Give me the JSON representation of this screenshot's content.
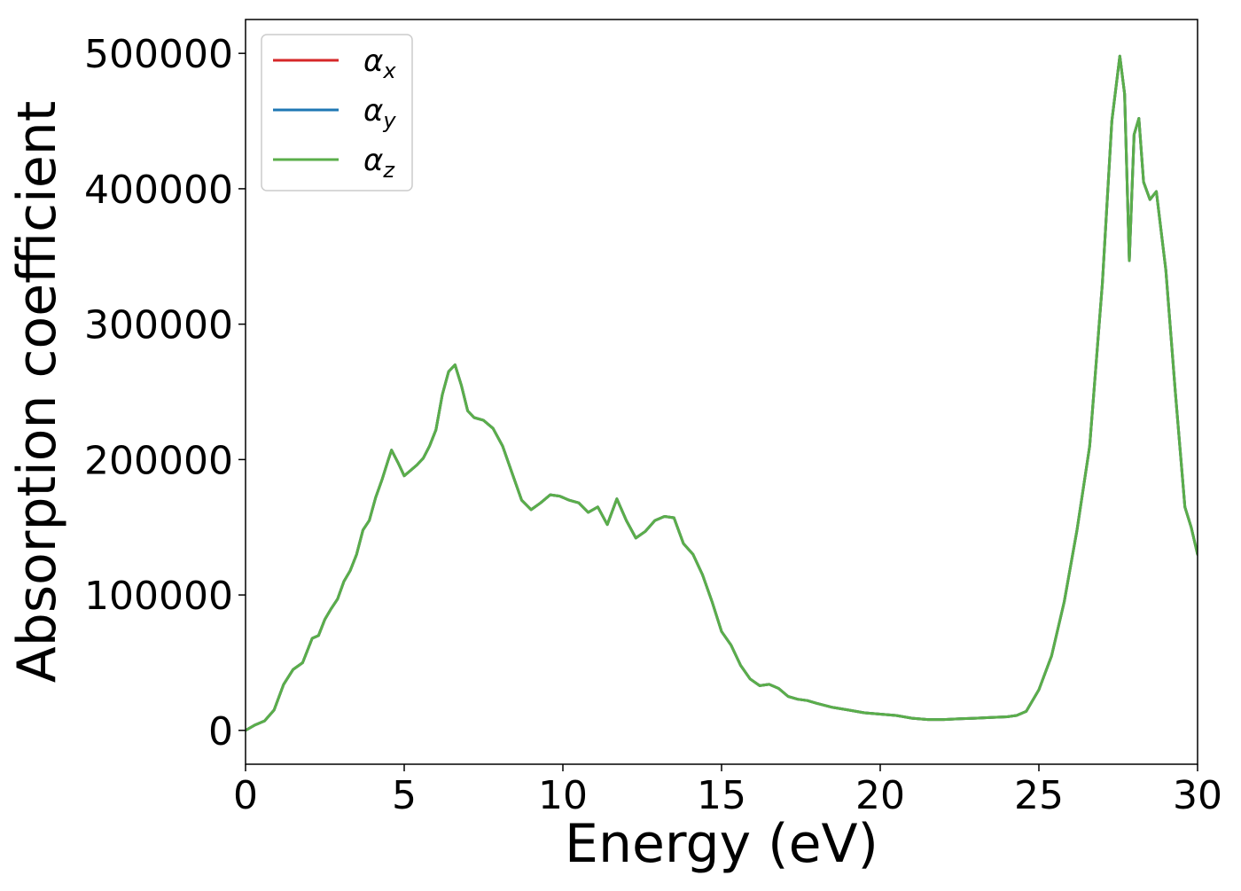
{
  "chart_data": {
    "type": "line",
    "title": "",
    "xlabel": "Energy (eV)",
    "ylabel": "Absorption coefficient",
    "xlim": [
      0,
      30
    ],
    "ylim": [
      -25000,
      525000
    ],
    "xticks": [
      0,
      5,
      10,
      15,
      20,
      25,
      30
    ],
    "yticks": [
      0,
      100000,
      200000,
      300000,
      400000,
      500000
    ],
    "grid": false,
    "legend_position": "top-left",
    "series": [
      {
        "name": "αx",
        "symbol": "α",
        "subscript": "x",
        "color": "#d62728",
        "x": [
          0,
          0.3,
          0.6,
          0.9,
          1.2,
          1.5,
          1.8,
          2.1,
          2.3,
          2.5,
          2.7,
          2.9,
          3.1,
          3.3,
          3.5,
          3.7,
          3.9,
          4.1,
          4.3,
          4.5,
          4.6,
          4.8,
          5.0,
          5.2,
          5.4,
          5.6,
          5.8,
          6.0,
          6.2,
          6.4,
          6.6,
          6.8,
          7.0,
          7.2,
          7.5,
          7.8,
          8.1,
          8.4,
          8.7,
          9.0,
          9.3,
          9.6,
          9.9,
          10.2,
          10.5,
          10.8,
          11.1,
          11.4,
          11.7,
          12.0,
          12.3,
          12.6,
          12.9,
          13.2,
          13.5,
          13.8,
          14.1,
          14.4,
          14.7,
          15.0,
          15.3,
          15.6,
          15.9,
          16.2,
          16.5,
          16.8,
          17.1,
          17.4,
          17.7,
          18.0,
          18.5,
          19.0,
          19.5,
          20.0,
          20.5,
          21.0,
          21.5,
          22.0,
          22.5,
          23.0,
          23.5,
          24.0,
          24.3,
          24.6,
          25.0,
          25.4,
          25.8,
          26.2,
          26.6,
          27.0,
          27.3,
          27.55,
          27.7,
          27.85,
          28.0,
          28.15,
          28.3,
          28.5,
          28.7,
          29.0,
          29.3,
          29.6,
          29.8,
          30.0
        ],
        "values": [
          0,
          4000,
          7000,
          15000,
          34000,
          45000,
          50000,
          68000,
          70000,
          82000,
          90000,
          97000,
          110000,
          118000,
          130000,
          148000,
          155000,
          172000,
          185000,
          200000,
          207000,
          198000,
          188000,
          192000,
          196000,
          201000,
          210000,
          222000,
          248000,
          265000,
          270000,
          255000,
          236000,
          231000,
          229000,
          223000,
          210000,
          190000,
          170000,
          163000,
          168000,
          174000,
          173000,
          170000,
          168000,
          161000,
          165000,
          152000,
          171000,
          155000,
          142000,
          147000,
          155000,
          158000,
          157000,
          138000,
          130000,
          115000,
          95000,
          73000,
          63000,
          48000,
          38000,
          33000,
          34000,
          31000,
          25000,
          23000,
          22000,
          20000,
          17000,
          15000,
          13000,
          12000,
          11000,
          9000,
          8000,
          8000,
          8500,
          9000,
          9500,
          10000,
          11000,
          14000,
          30000,
          55000,
          95000,
          148000,
          210000,
          330000,
          450000,
          498000,
          470000,
          347000,
          440000,
          452000,
          405000,
          392000,
          398000,
          340000,
          250000,
          165000,
          150000,
          130000
        ]
      },
      {
        "name": "αy",
        "symbol": "α",
        "subscript": "y",
        "color": "#1f77b4",
        "x": [
          0,
          0.3,
          0.6,
          0.9,
          1.2,
          1.5,
          1.8,
          2.1,
          2.3,
          2.5,
          2.7,
          2.9,
          3.1,
          3.3,
          3.5,
          3.7,
          3.9,
          4.1,
          4.3,
          4.5,
          4.6,
          4.8,
          5.0,
          5.2,
          5.4,
          5.6,
          5.8,
          6.0,
          6.2,
          6.4,
          6.6,
          6.8,
          7.0,
          7.2,
          7.5,
          7.8,
          8.1,
          8.4,
          8.7,
          9.0,
          9.3,
          9.6,
          9.9,
          10.2,
          10.5,
          10.8,
          11.1,
          11.4,
          11.7,
          12.0,
          12.3,
          12.6,
          12.9,
          13.2,
          13.5,
          13.8,
          14.1,
          14.4,
          14.7,
          15.0,
          15.3,
          15.6,
          15.9,
          16.2,
          16.5,
          16.8,
          17.1,
          17.4,
          17.7,
          18.0,
          18.5,
          19.0,
          19.5,
          20.0,
          20.5,
          21.0,
          21.5,
          22.0,
          22.5,
          23.0,
          23.5,
          24.0,
          24.3,
          24.6,
          25.0,
          25.4,
          25.8,
          26.2,
          26.6,
          27.0,
          27.3,
          27.55,
          27.7,
          27.85,
          28.0,
          28.15,
          28.3,
          28.5,
          28.7,
          29.0,
          29.3,
          29.6,
          29.8,
          30.0
        ],
        "values": [
          0,
          4000,
          7000,
          15000,
          34000,
          45000,
          50000,
          68000,
          70000,
          82000,
          90000,
          97000,
          110000,
          118000,
          130000,
          148000,
          155000,
          172000,
          185000,
          200000,
          207000,
          198000,
          188000,
          192000,
          196000,
          201000,
          210000,
          222000,
          248000,
          265000,
          270000,
          255000,
          236000,
          231000,
          229000,
          223000,
          210000,
          190000,
          170000,
          163000,
          168000,
          174000,
          173000,
          170000,
          168000,
          161000,
          165000,
          152000,
          171000,
          155000,
          142000,
          147000,
          155000,
          158000,
          157000,
          138000,
          130000,
          115000,
          95000,
          73000,
          63000,
          48000,
          38000,
          33000,
          34000,
          31000,
          25000,
          23000,
          22000,
          20000,
          17000,
          15000,
          13000,
          12000,
          11000,
          9000,
          8000,
          8000,
          8500,
          9000,
          9500,
          10000,
          11000,
          14000,
          30000,
          55000,
          95000,
          148000,
          210000,
          330000,
          450000,
          498000,
          470000,
          347000,
          440000,
          452000,
          405000,
          392000,
          398000,
          340000,
          250000,
          165000,
          150000,
          130000
        ]
      },
      {
        "name": "αz",
        "symbol": "α",
        "subscript": "z",
        "color": "#5aae4a",
        "x": [
          0,
          0.3,
          0.6,
          0.9,
          1.2,
          1.5,
          1.8,
          2.1,
          2.3,
          2.5,
          2.7,
          2.9,
          3.1,
          3.3,
          3.5,
          3.7,
          3.9,
          4.1,
          4.3,
          4.5,
          4.6,
          4.8,
          5.0,
          5.2,
          5.4,
          5.6,
          5.8,
          6.0,
          6.2,
          6.4,
          6.6,
          6.8,
          7.0,
          7.2,
          7.5,
          7.8,
          8.1,
          8.4,
          8.7,
          9.0,
          9.3,
          9.6,
          9.9,
          10.2,
          10.5,
          10.8,
          11.1,
          11.4,
          11.7,
          12.0,
          12.3,
          12.6,
          12.9,
          13.2,
          13.5,
          13.8,
          14.1,
          14.4,
          14.7,
          15.0,
          15.3,
          15.6,
          15.9,
          16.2,
          16.5,
          16.8,
          17.1,
          17.4,
          17.7,
          18.0,
          18.5,
          19.0,
          19.5,
          20.0,
          20.5,
          21.0,
          21.5,
          22.0,
          22.5,
          23.0,
          23.5,
          24.0,
          24.3,
          24.6,
          25.0,
          25.4,
          25.8,
          26.2,
          26.6,
          27.0,
          27.3,
          27.55,
          27.7,
          27.85,
          28.0,
          28.15,
          28.3,
          28.5,
          28.7,
          29.0,
          29.3,
          29.6,
          29.8,
          30.0
        ],
        "values": [
          0,
          4000,
          7000,
          15000,
          34000,
          45000,
          50000,
          68000,
          70000,
          82000,
          90000,
          97000,
          110000,
          118000,
          130000,
          148000,
          155000,
          172000,
          185000,
          200000,
          207000,
          198000,
          188000,
          192000,
          196000,
          201000,
          210000,
          222000,
          248000,
          265000,
          270000,
          255000,
          236000,
          231000,
          229000,
          223000,
          210000,
          190000,
          170000,
          163000,
          168000,
          174000,
          173000,
          170000,
          168000,
          161000,
          165000,
          152000,
          171000,
          155000,
          142000,
          147000,
          155000,
          158000,
          157000,
          138000,
          130000,
          115000,
          95000,
          73000,
          63000,
          48000,
          38000,
          33000,
          34000,
          31000,
          25000,
          23000,
          22000,
          20000,
          17000,
          15000,
          13000,
          12000,
          11000,
          9000,
          8000,
          8000,
          8500,
          9000,
          9500,
          10000,
          11000,
          14000,
          30000,
          55000,
          95000,
          148000,
          210000,
          330000,
          450000,
          498000,
          470000,
          347000,
          440000,
          452000,
          405000,
          392000,
          398000,
          340000,
          250000,
          165000,
          150000,
          130000
        ]
      }
    ]
  }
}
